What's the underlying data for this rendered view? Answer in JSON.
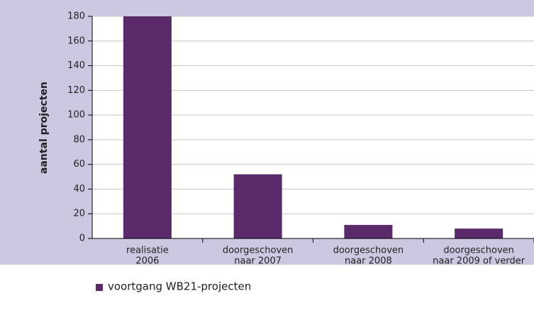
{
  "chart_data": {
    "type": "bar",
    "y_label": "aantal projecten",
    "categories": [
      [
        "realisatie",
        "2006"
      ],
      [
        "doorgeschoven",
        "naar 2007"
      ],
      [
        "doorgeschoven",
        "naar 2008"
      ],
      [
        "doorgeschoven",
        "naar 2009 of verder"
      ]
    ],
    "series": [
      {
        "name": "voortgang WB21-projecten",
        "color": "#5b2a6b",
        "values": [
          180,
          52,
          11,
          8
        ]
      }
    ],
    "ylim": [
      0,
      180
    ],
    "yticks": [
      0,
      20,
      40,
      60,
      80,
      100,
      120,
      140,
      160,
      180
    ],
    "grid": true,
    "legend": "bottom"
  }
}
